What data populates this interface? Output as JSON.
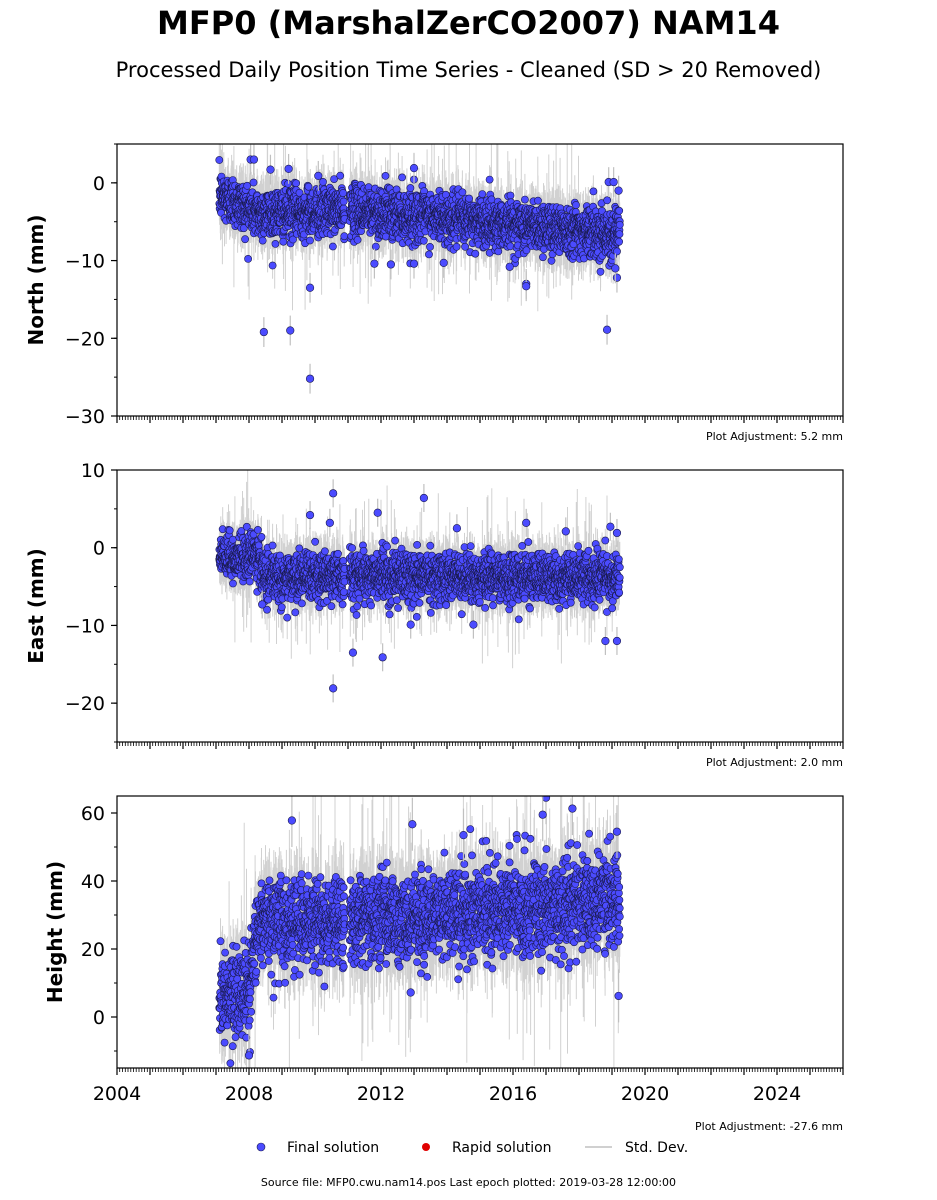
{
  "title": "MFP0 (MarshalZerCO2007) NAM14",
  "subtitle": "Processed Daily Position Time Series - Cleaned (SD > 20 Removed)",
  "footer": "Source file: MFP0.cwu.nam14.pos  Last epoch plotted: 2019-03-28 12:00:00",
  "colors": {
    "final": "#4b4bff",
    "final_edge": "#1a1a4d",
    "rapid": "#e00000",
    "stddev": "#c0c0c0"
  },
  "legend": {
    "final": "Final solution",
    "rapid": "Rapid solution",
    "stddev": "Std. Dev."
  },
  "chart_data": [
    {
      "type": "scatter",
      "ylabel": "North (mm)",
      "xlim": [
        2004,
        2026
      ],
      "ylim": [
        -30,
        5
      ],
      "xticks": [
        2004,
        2008,
        2012,
        2016,
        2020,
        2024
      ],
      "show_xtick_labels": false,
      "yticks": [
        {
          "value": -30,
          "label": "−30"
        },
        {
          "value": -20,
          "label": "−20"
        },
        {
          "value": -10,
          "label": "−10"
        },
        {
          "value": 0,
          "label": "0"
        }
      ],
      "adjustment": "Plot Adjustment: 5.2 mm",
      "data_span": [
        2007.1,
        2019.24
      ],
      "trend": [
        [
          2007.1,
          -1.5
        ],
        [
          2008.3,
          -4.0
        ],
        [
          2011.0,
          -3.5
        ],
        [
          2019.2,
          -6.5
        ]
      ],
      "scatter_sd": 1.6,
      "outliers": [
        [
          2008.45,
          -19.2
        ],
        [
          2009.25,
          -19.0
        ],
        [
          2009.85,
          -13.5
        ],
        [
          2009.85,
          -25.2
        ],
        [
          2011.8,
          -10.4
        ],
        [
          2012.3,
          -10.5
        ],
        [
          2013.0,
          -10.4
        ],
        [
          2013.9,
          -10.3
        ],
        [
          2016.4,
          -13.0
        ],
        [
          2016.4,
          -13.3
        ],
        [
          2015.9,
          -10.8
        ],
        [
          2018.85,
          -18.9
        ],
        [
          2019.15,
          -12.2
        ],
        [
          2019.1,
          -11.0
        ],
        [
          2008.05,
          3.0
        ],
        [
          2008.15,
          3.0
        ],
        [
          2008.65,
          1.7
        ],
        [
          2009.2,
          1.8
        ],
        [
          2010.1,
          0.9
        ],
        [
          2013.0,
          1.9
        ],
        [
          2018.9,
          0.1
        ],
        [
          2019.05,
          0.1
        ],
        [
          2019.2,
          -1.0
        ]
      ]
    },
    {
      "type": "scatter",
      "ylabel": "East (mm)",
      "xlim": [
        2004,
        2026
      ],
      "ylim": [
        -25,
        10
      ],
      "xticks": [
        2004,
        2008,
        2012,
        2016,
        2020,
        2024
      ],
      "show_xtick_labels": false,
      "yticks": [
        {
          "value": -20,
          "label": "−20"
        },
        {
          "value": -10,
          "label": "−10"
        },
        {
          "value": 0,
          "label": "0"
        },
        {
          "value": 10,
          "label": "10"
        }
      ],
      "adjustment": "Plot Adjustment: 2.0 mm",
      "data_span": [
        2007.1,
        2019.24
      ],
      "trend": [
        [
          2007.1,
          -1.5
        ],
        [
          2008.3,
          -1.0
        ],
        [
          2008.5,
          -4.0
        ],
        [
          2011.0,
          -3.5
        ],
        [
          2019.2,
          -4.0
        ]
      ],
      "scatter_sd": 1.5,
      "outliers": [
        [
          2010.55,
          7.0
        ],
        [
          2010.45,
          3.2
        ],
        [
          2009.85,
          4.2
        ],
        [
          2011.9,
          4.5
        ],
        [
          2013.3,
          6.4
        ],
        [
          2014.3,
          2.5
        ],
        [
          2016.4,
          3.2
        ],
        [
          2017.6,
          2.1
        ],
        [
          2018.95,
          2.7
        ],
        [
          2019.15,
          1.9
        ],
        [
          2010.55,
          -18.1
        ],
        [
          2011.15,
          -13.5
        ],
        [
          2012.05,
          -14.1
        ],
        [
          2012.9,
          -9.9
        ],
        [
          2014.8,
          -9.9
        ],
        [
          2018.8,
          -12.0
        ],
        [
          2019.15,
          -12.0
        ],
        [
          2008.4,
          -7.3
        ]
      ]
    },
    {
      "type": "scatter",
      "ylabel": "Height (mm)",
      "xlim": [
        2004,
        2026
      ],
      "ylim": [
        -15,
        65
      ],
      "xticks": [
        2004,
        2008,
        2012,
        2016,
        2020,
        2024
      ],
      "xtick_labels": [
        "2004",
        "2008",
        "2012",
        "2016",
        "2020",
        "2024"
      ],
      "show_xtick_labels": true,
      "yticks": [
        {
          "value": 0,
          "label": "0"
        },
        {
          "value": 20,
          "label": "20"
        },
        {
          "value": 40,
          "label": "40"
        },
        {
          "value": 60,
          "label": "60"
        }
      ],
      "adjustment": "Plot Adjustment: -27.6 mm",
      "data_span": [
        2007.1,
        2019.24
      ],
      "trend": [
        [
          2007.1,
          5.0
        ],
        [
          2008.0,
          8.0
        ],
        [
          2008.3,
          28.0
        ],
        [
          2011.0,
          28.0
        ],
        [
          2019.2,
          34.0
        ]
      ],
      "scatter_sd": 6.5,
      "outliers": [
        [
          2009.3,
          57.8
        ],
        [
          2012.95,
          56.7
        ],
        [
          2017.0,
          64.5
        ],
        [
          2017.8,
          61.3
        ],
        [
          2019.15,
          54.5
        ],
        [
          2008.0,
          -11.3
        ],
        [
          2012.9,
          7.2
        ],
        [
          2019.2,
          6.2
        ],
        [
          2014.5,
          53.5
        ],
        [
          2016.9,
          59.5
        ]
      ]
    }
  ]
}
